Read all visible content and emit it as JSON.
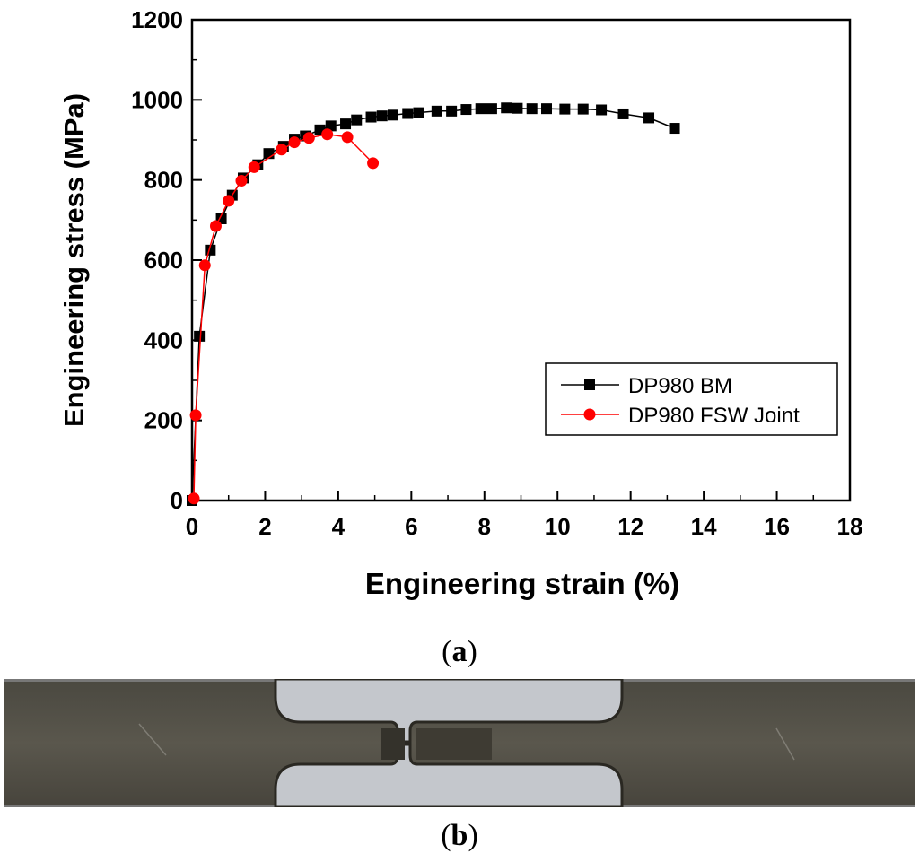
{
  "chart_data": {
    "type": "line",
    "xlabel": "Engineering strain (%)",
    "ylabel": "Engineering stress (MPa)",
    "xlim": [
      0,
      18
    ],
    "ylim": [
      0,
      1200
    ],
    "xticks": [
      "0",
      "2",
      "4",
      "6",
      "8",
      "10",
      "12",
      "14",
      "16",
      "18"
    ],
    "yticks": [
      "0",
      "200",
      "400",
      "600",
      "800",
      "1000",
      "1200"
    ],
    "legend_position": "lower-right",
    "series": [
      {
        "name": "DP980 BM",
        "color": "#000000",
        "marker": "square",
        "points": [
          [
            0.0,
            0
          ],
          [
            0.2,
            410
          ],
          [
            0.5,
            625
          ],
          [
            0.8,
            703
          ],
          [
            1.1,
            762
          ],
          [
            1.4,
            805
          ],
          [
            1.8,
            838
          ],
          [
            2.1,
            866
          ],
          [
            2.5,
            884
          ],
          [
            2.8,
            902
          ],
          [
            3.1,
            910
          ],
          [
            3.5,
            925
          ],
          [
            3.8,
            935
          ],
          [
            4.2,
            940
          ],
          [
            4.5,
            950
          ],
          [
            4.9,
            957
          ],
          [
            5.2,
            960
          ],
          [
            5.5,
            962
          ],
          [
            5.9,
            966
          ],
          [
            6.2,
            968
          ],
          [
            6.7,
            972
          ],
          [
            7.1,
            972
          ],
          [
            7.5,
            976
          ],
          [
            7.9,
            978
          ],
          [
            8.2,
            978
          ],
          [
            8.6,
            980
          ],
          [
            8.9,
            979
          ],
          [
            9.3,
            978
          ],
          [
            9.7,
            978
          ],
          [
            10.2,
            977
          ],
          [
            10.7,
            977
          ],
          [
            11.2,
            975
          ],
          [
            11.8,
            965
          ],
          [
            12.5,
            955
          ],
          [
            13.2,
            929
          ]
        ]
      },
      {
        "name": "DP980 FSW Joint",
        "color": "#ff0000",
        "marker": "circle",
        "points": [
          [
            0.05,
            5
          ],
          [
            0.1,
            213
          ],
          [
            0.35,
            587
          ],
          [
            0.65,
            685
          ],
          [
            1.0,
            748
          ],
          [
            1.35,
            798
          ],
          [
            1.7,
            832
          ],
          [
            2.45,
            876
          ],
          [
            2.8,
            894
          ],
          [
            3.2,
            905
          ],
          [
            3.7,
            914
          ],
          [
            4.25,
            907
          ],
          [
            4.95,
            842
          ]
        ]
      }
    ]
  },
  "captions": {
    "a": "a",
    "b": "b"
  },
  "photo": {
    "description_icon": "tensile-specimen-photo",
    "colors": {
      "metal": "#555248",
      "background": "#c4c7cc"
    }
  }
}
